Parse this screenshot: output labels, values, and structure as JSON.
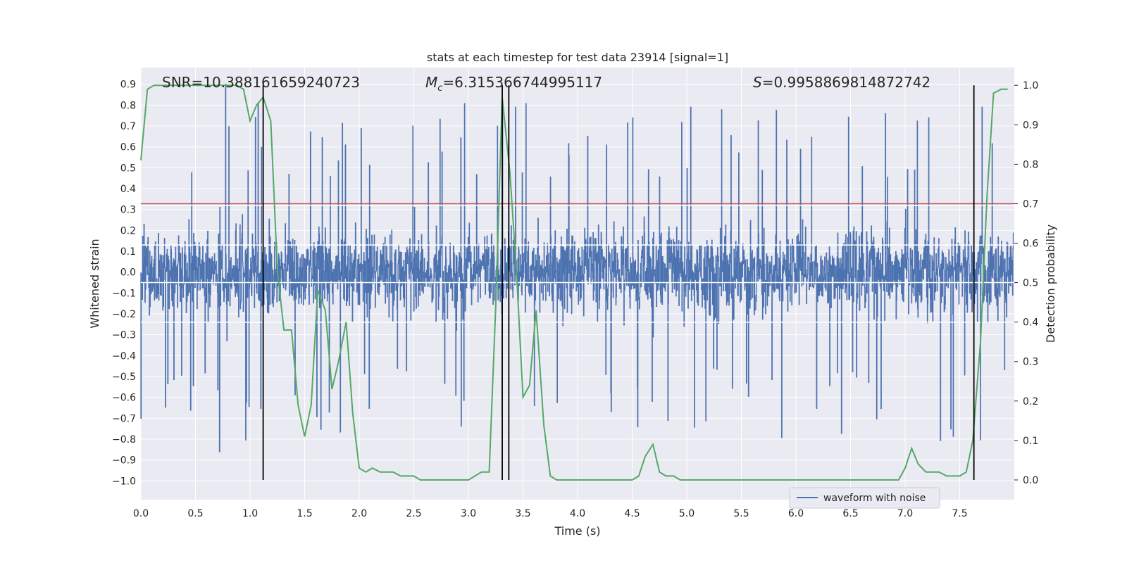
{
  "chart_data": {
    "type": "line",
    "title": "stats at each timestep for test data 23914 [signal=1]",
    "xlabel": "Time (s)",
    "ylabel": "Whitened strain",
    "ylabel_right": "Detection probability",
    "xlim": [
      0.0,
      8.0
    ],
    "ylim": [
      -1.09,
      0.98
    ],
    "ylim_right": [
      -0.05,
      1.045
    ],
    "xticks": [
      "0.0",
      "0.5",
      "1.0",
      "1.5",
      "2.0",
      "2.5",
      "3.0",
      "3.5",
      "4.0",
      "4.5",
      "5.0",
      "5.5",
      "6.0",
      "6.5",
      "7.0",
      "7.5"
    ],
    "yticks": [
      "0.9",
      "0.8",
      "0.7",
      "0.6",
      "0.5",
      "0.4",
      "0.3",
      "0.2",
      "0.1",
      "0.0",
      "−0.1",
      "−0.2",
      "−0.3",
      "−0.4",
      "−0.5",
      "−0.6",
      "−0.7",
      "−0.8",
      "−0.9",
      "−1.0"
    ],
    "yticks_right": [
      "1.0",
      "0.9",
      "0.8",
      "0.7",
      "0.6",
      "0.5",
      "0.4",
      "0.3",
      "0.2",
      "0.1",
      "0.0"
    ],
    "grid": true,
    "legend_position": "lower-right",
    "annotations": {
      "snr": "SNR=10.388161659240723",
      "mc_symbol": "M",
      "mc_subscript": "c",
      "mc_value": "=6.315366744995117",
      "s_symbol": "S",
      "s_value": "=0.9958869814872742"
    },
    "series": [
      {
        "name": "waveform with noise",
        "axis": "left",
        "color": "#4c72b0",
        "kind": "noise",
        "typical_range": [
          -0.45,
          0.45
        ],
        "peak_range": [
          -0.86,
          0.9
        ],
        "duration": 7.99
      },
      {
        "axis": "right",
        "color": "#55a868",
        "x": [
          0.0,
          0.06,
          0.12,
          0.19,
          0.25,
          0.31,
          0.38,
          0.44,
          0.5,
          0.56,
          0.62,
          0.69,
          0.75,
          0.81,
          0.88,
          0.94,
          1.0,
          1.06,
          1.12,
          1.19,
          1.25,
          1.31,
          1.38,
          1.44,
          1.5,
          1.56,
          1.62,
          1.69,
          1.75,
          1.81,
          1.88,
          1.94,
          2.0,
          2.06,
          2.12,
          2.19,
          2.25,
          2.31,
          2.38,
          2.44,
          2.5,
          2.56,
          2.62,
          2.69,
          2.75,
          2.81,
          2.88,
          2.94,
          3.0,
          3.06,
          3.12,
          3.19,
          3.25,
          3.31,
          3.38,
          3.44,
          3.5,
          3.56,
          3.62,
          3.69,
          3.75,
          3.81,
          3.88,
          3.94,
          4.0,
          4.06,
          4.12,
          4.19,
          4.25,
          4.31,
          4.38,
          4.44,
          4.5,
          4.56,
          4.62,
          4.69,
          4.75,
          4.81,
          4.88,
          4.94,
          5.0,
          5.06,
          5.5,
          6.0,
          6.5,
          6.88,
          6.94,
          7.0,
          7.06,
          7.12,
          7.19,
          7.25,
          7.31,
          7.38,
          7.44,
          7.5,
          7.56,
          7.62,
          7.69,
          7.75,
          7.81,
          7.88,
          7.94
        ],
        "values": [
          0.81,
          0.99,
          1.0,
          1.0,
          1.0,
          1.0,
          1.0,
          1.0,
          1.0,
          1.0,
          1.0,
          1.0,
          1.0,
          1.0,
          1.0,
          0.99,
          0.91,
          0.95,
          0.97,
          0.91,
          0.53,
          0.38,
          0.38,
          0.19,
          0.11,
          0.19,
          0.48,
          0.43,
          0.23,
          0.3,
          0.4,
          0.17,
          0.03,
          0.02,
          0.03,
          0.02,
          0.02,
          0.02,
          0.01,
          0.01,
          0.01,
          0.0,
          0.0,
          0.0,
          0.0,
          0.0,
          0.0,
          0.0,
          0.0,
          0.01,
          0.02,
          0.02,
          0.44,
          0.97,
          0.78,
          0.53,
          0.21,
          0.24,
          0.43,
          0.14,
          0.01,
          0.0,
          0.0,
          0.0,
          0.0,
          0.0,
          0.0,
          0.0,
          0.0,
          0.0,
          0.0,
          0.0,
          0.0,
          0.01,
          0.06,
          0.09,
          0.02,
          0.01,
          0.01,
          0.0,
          0.0,
          0.0,
          0.0,
          0.0,
          0.0,
          0.0,
          0.0,
          0.03,
          0.08,
          0.04,
          0.02,
          0.02,
          0.02,
          0.01,
          0.01,
          0.01,
          0.02,
          0.1,
          0.35,
          0.72,
          0.98,
          0.99,
          0.99
        ]
      }
    ],
    "threshold_line": {
      "value": 0.7,
      "color": "#c44e52"
    },
    "vertical_markers": [
      1.12,
      3.31,
      3.37,
      7.63
    ],
    "horizontal_reference_lines": [
      0.32,
      0.13,
      -0.05,
      -0.24
    ],
    "colors": {
      "plot_bg": "#eaeaf2",
      "grid": "#ffffff",
      "text": "#262626",
      "marker": "#000000"
    }
  }
}
